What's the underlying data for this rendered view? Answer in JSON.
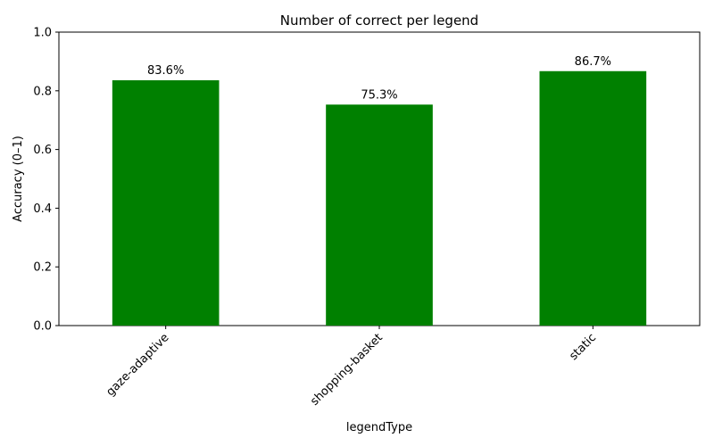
{
  "chart_data": {
    "type": "bar",
    "title": "Number of correct per legend",
    "xlabel": "legendType",
    "ylabel": "Accuracy (0–1)",
    "categories": [
      "gaze-adaptive",
      "shopping-basket",
      "static"
    ],
    "values": [
      0.836,
      0.753,
      0.867
    ],
    "data_labels": [
      "83.6%",
      "75.3%",
      "86.7%"
    ],
    "ylim": [
      0,
      1
    ],
    "yticks": [
      0.0,
      0.2,
      0.4,
      0.6,
      0.8,
      1.0
    ],
    "ytick_labels": [
      "0.0",
      "0.2",
      "0.4",
      "0.6",
      "0.8",
      "1.0"
    ],
    "bar_color": "#008000",
    "grid": false,
    "legend": "none",
    "xtick_rotation_deg": 45
  }
}
